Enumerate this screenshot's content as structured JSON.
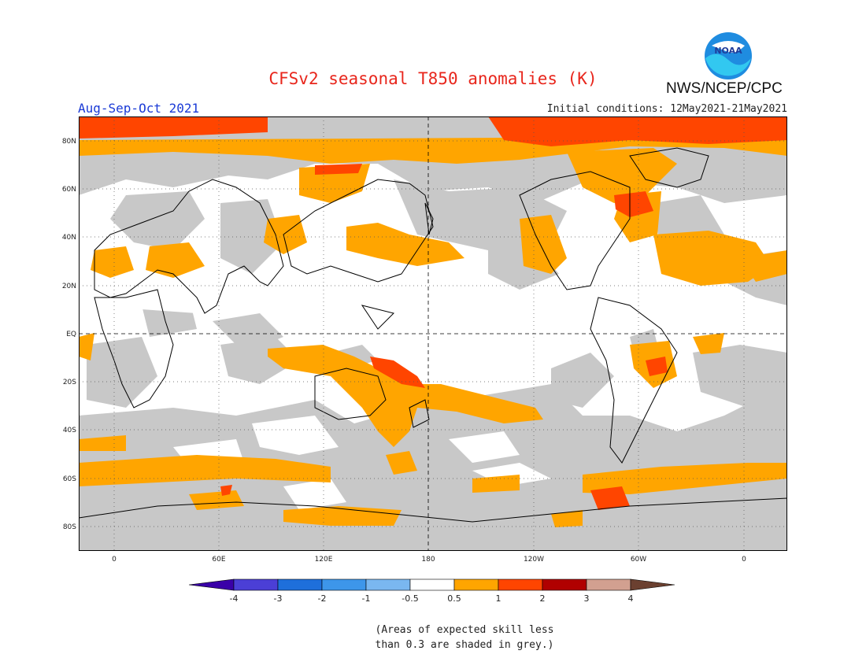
{
  "header": {
    "title": "CFSv2 seasonal T850 anomalies (K)",
    "agency": "NWS/NCEP/CPC",
    "season": "Aug-Sep-Oct 2021",
    "initial_conditions": "Initial conditions: 12May2021-21May2021",
    "logo_text": "NOAA",
    "logo_icon": "noaa-logo-icon"
  },
  "map": {
    "latitude_labels": [
      "80N",
      "60N",
      "40N",
      "20N",
      "EQ",
      "20S",
      "40S",
      "60S",
      "80S"
    ],
    "longitude_labels": [
      "0",
      "60E",
      "120E",
      "180",
      "120W",
      "60W",
      "0"
    ],
    "colors": {
      "no_skill_grey": "#c8c8c8",
      "anomaly_0_5_to_1": "#ffa500",
      "anomaly_1_to_2": "#ff4500",
      "anomaly_2_to_3": "#b22222"
    }
  },
  "legend": {
    "tick_labels": [
      "-4",
      "-3",
      "-2",
      "-1",
      "-0.5",
      "0.5",
      "1",
      "2",
      "3",
      "4"
    ],
    "colors": [
      "#3a00a8",
      "#4b3fd6",
      "#1e6fdb",
      "#3d96ea",
      "#7ab7f0",
      "#ffffff",
      "#ffa500",
      "#ff4500",
      "#b00000",
      "#d2a090",
      "#6b4030"
    ]
  },
  "note": {
    "line1": "(Areas of expected skill less",
    "line2": "than 0.3 are shaded in grey.)"
  }
}
